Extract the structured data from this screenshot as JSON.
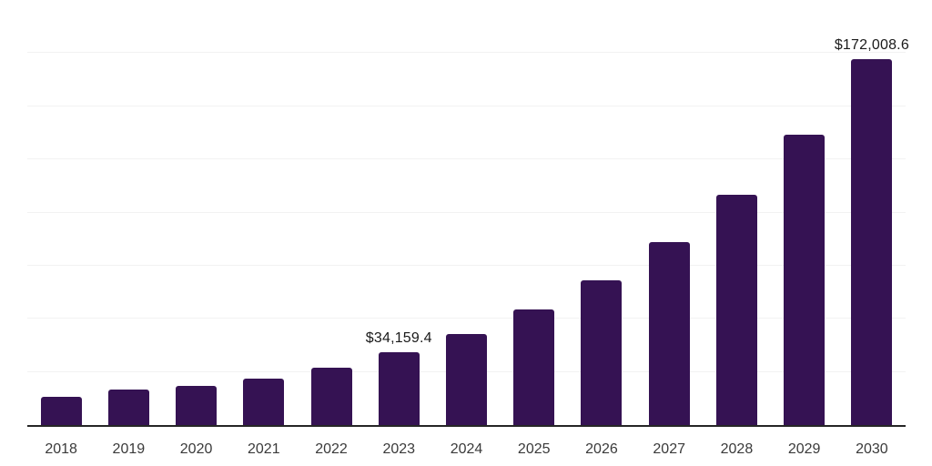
{
  "colors": {
    "background": "#ffffff",
    "bar": "#351253",
    "axis_line": "#262626",
    "gridline": "#f2f2f2",
    "data_label": "#1a1a1a",
    "tick_label": "#3a3a3a"
  },
  "chart_data": {
    "type": "bar",
    "title": "",
    "xlabel": "",
    "ylabel": "",
    "categories": [
      "2018",
      "2019",
      "2020",
      "2021",
      "2022",
      "2023",
      "2024",
      "2025",
      "2026",
      "2027",
      "2028",
      "2029",
      "2030"
    ],
    "values": [
      13400,
      16700,
      18400,
      22000,
      27100,
      34159.4,
      43000,
      54200,
      68300,
      86000,
      108400,
      136500,
      172008.6
    ],
    "data_labels": [
      null,
      null,
      null,
      null,
      null,
      "$34,159.4",
      null,
      null,
      null,
      null,
      null,
      null,
      "$172,008.6"
    ],
    "ylim": [
      0,
      200000
    ],
    "gridline_interval": 25000,
    "grid": true,
    "legend": false,
    "y_axis_tick_labels_visible": false
  }
}
